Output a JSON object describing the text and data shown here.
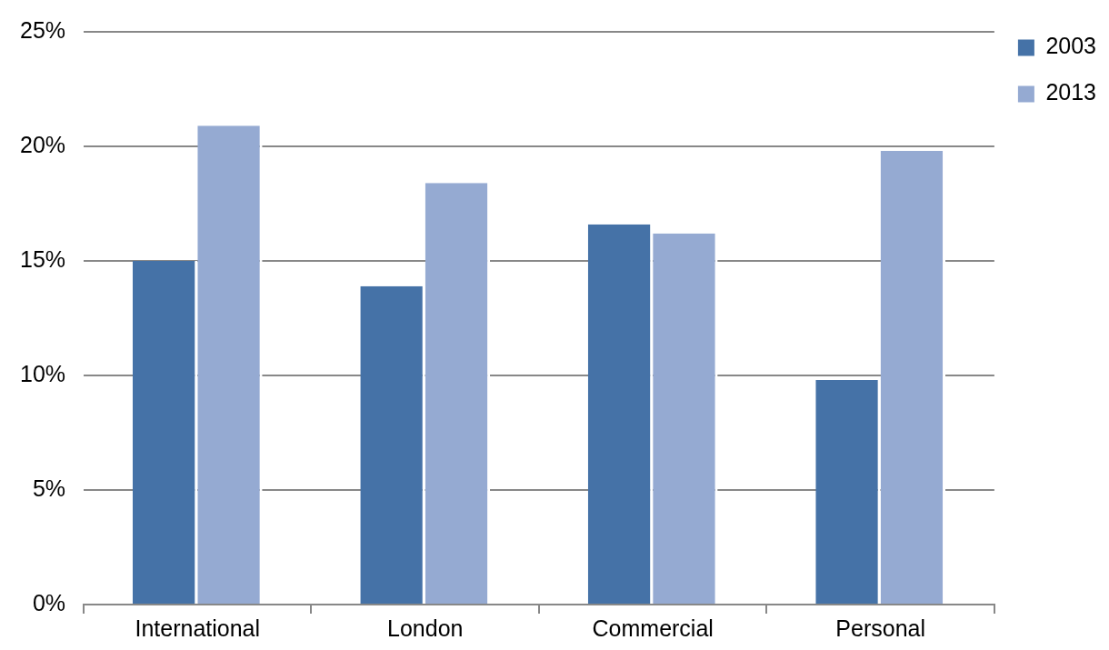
{
  "chart_data": {
    "type": "bar",
    "categories": [
      "International",
      "London",
      "Commercial",
      "Personal"
    ],
    "series": [
      {
        "name": "2003",
        "color": "#4572a7",
        "values": [
          15.0,
          13.9,
          16.6,
          9.8
        ]
      },
      {
        "name": "2013",
        "color": "#95aad2",
        "values": [
          20.9,
          18.4,
          16.2,
          19.8
        ]
      }
    ],
    "ylim": [
      0,
      25
    ],
    "yticks": [
      {
        "value": 0,
        "label": "0%"
      },
      {
        "value": 5,
        "label": "5%"
      },
      {
        "value": 10,
        "label": "10%"
      },
      {
        "value": 15,
        "label": "15%"
      },
      {
        "value": 20,
        "label": "20%"
      },
      {
        "value": 25,
        "label": "25%"
      }
    ],
    "grid": "y",
    "legend": "top right"
  }
}
